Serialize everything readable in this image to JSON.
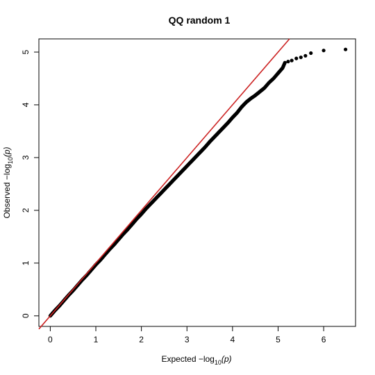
{
  "chart_data": {
    "type": "scatter",
    "title": "QQ random 1",
    "xlabel": {
      "prefix": "Expected  −log",
      "sub": "10",
      "suffix": "(p)"
    },
    "ylabel": {
      "prefix": "Observed  −log",
      "sub": "10",
      "suffix": "(p)"
    },
    "xlim": [
      -0.25,
      6.7
    ],
    "ylim": [
      -0.2,
      5.25
    ],
    "x_ticks": [
      0,
      1,
      2,
      3,
      4,
      5,
      6
    ],
    "y_ticks": [
      0,
      1,
      2,
      3,
      4,
      5
    ],
    "x_tick_labels": [
      "0",
      "1",
      "2",
      "3",
      "4",
      "5",
      "6"
    ],
    "y_tick_labels": [
      "0",
      "1",
      "2",
      "3",
      "4",
      "5"
    ],
    "grid": false,
    "legend": "none",
    "reference_line": {
      "slope": 1,
      "intercept": 0,
      "color": "#cc2222"
    },
    "point_color": "#000000",
    "series": [
      {
        "points": [
          [
            0.0,
            0.0
          ],
          [
            0.1,
            0.1
          ],
          [
            0.2,
            0.19
          ],
          [
            0.3,
            0.29
          ],
          [
            0.4,
            0.39
          ],
          [
            0.5,
            0.48
          ],
          [
            0.6,
            0.58
          ],
          [
            0.7,
            0.68
          ],
          [
            0.8,
            0.77
          ],
          [
            0.9,
            0.87
          ],
          [
            1.0,
            0.97
          ],
          [
            1.1,
            1.06
          ],
          [
            1.2,
            1.16
          ],
          [
            1.3,
            1.26
          ],
          [
            1.4,
            1.35
          ],
          [
            1.5,
            1.45
          ],
          [
            1.6,
            1.55
          ],
          [
            1.7,
            1.64
          ],
          [
            1.8,
            1.74
          ],
          [
            1.9,
            1.84
          ],
          [
            2.0,
            1.93
          ],
          [
            2.1,
            2.03
          ],
          [
            2.2,
            2.12
          ],
          [
            2.3,
            2.21
          ],
          [
            2.4,
            2.3
          ],
          [
            2.5,
            2.39
          ],
          [
            2.6,
            2.48
          ],
          [
            2.7,
            2.57
          ],
          [
            2.8,
            2.66
          ],
          [
            2.9,
            2.75
          ],
          [
            3.0,
            2.84
          ],
          [
            3.1,
            2.93
          ],
          [
            3.2,
            3.02
          ],
          [
            3.3,
            3.11
          ],
          [
            3.4,
            3.2
          ],
          [
            3.5,
            3.3
          ],
          [
            3.6,
            3.39
          ],
          [
            3.7,
            3.48
          ],
          [
            3.8,
            3.57
          ],
          [
            3.9,
            3.66
          ],
          [
            4.0,
            3.76
          ],
          [
            4.1,
            3.85
          ],
          [
            4.2,
            3.96
          ],
          [
            4.3,
            4.05
          ],
          [
            4.4,
            4.12
          ],
          [
            4.5,
            4.18
          ],
          [
            4.6,
            4.25
          ],
          [
            4.7,
            4.32
          ],
          [
            4.8,
            4.42
          ],
          [
            4.9,
            4.5
          ],
          [
            5.0,
            4.6
          ],
          [
            5.05,
            4.65
          ],
          [
            5.1,
            4.7
          ],
          [
            5.15,
            4.8
          ],
          [
            5.22,
            4.82
          ],
          [
            5.3,
            4.84
          ],
          [
            5.4,
            4.88
          ],
          [
            5.5,
            4.9
          ],
          [
            5.6,
            4.93
          ],
          [
            5.72,
            4.98
          ],
          [
            6.0,
            5.03
          ],
          [
            6.48,
            5.05
          ]
        ]
      }
    ]
  }
}
